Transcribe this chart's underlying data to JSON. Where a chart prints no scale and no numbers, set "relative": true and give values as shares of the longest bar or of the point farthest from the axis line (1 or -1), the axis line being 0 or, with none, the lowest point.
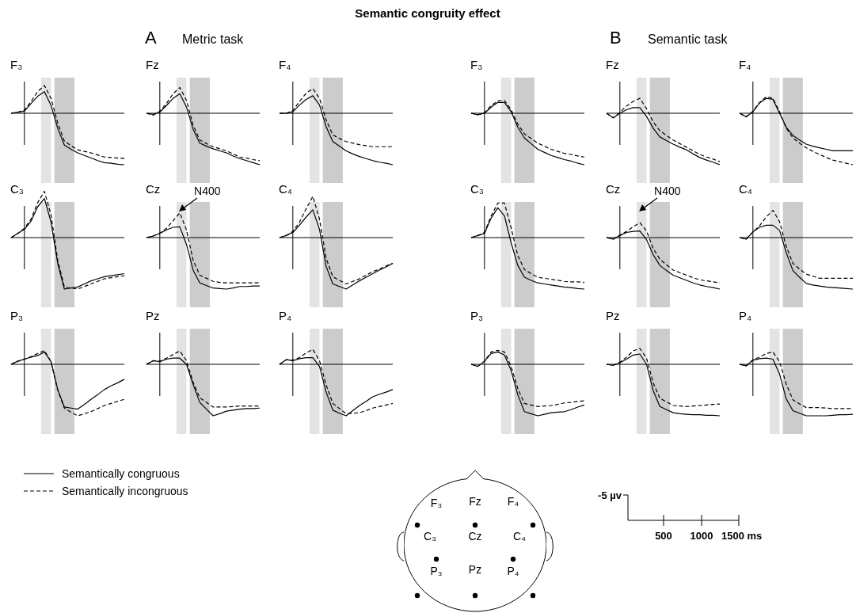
{
  "chart_data": [
    {
      "type": "line",
      "title": "F₃",
      "relative": true,
      "categories": [
        null,
        null,
        null,
        null,
        null,
        null,
        null,
        null,
        null,
        null,
        null,
        null,
        null,
        null,
        null,
        null,
        null,
        null
      ],
      "legend": "bottom right",
      "series": [
        {
          "name": "Semantically congruous",
          "color": "#000000",
          "line_style": "solid",
          "values": [
            0,
            0.02,
            0.04,
            0.19,
            0.33,
            0.42,
            0.15,
            -0.29,
            -0.62,
            -0.7,
            -0.77,
            -0.82,
            -0.87,
            -0.92,
            -0.96,
            -0.97,
            -0.99,
            -1
          ]
        },
        {
          "name": "Semantically incongruous",
          "color": "#000000",
          "line_style": "dashed",
          "values": [
            0,
            0.02,
            0.06,
            0.23,
            0.42,
            0.54,
            0.29,
            -0.19,
            -0.54,
            -0.63,
            -0.71,
            -0.74,
            -0.77,
            -0.81,
            -0.85,
            -0.86,
            -0.87,
            -0.88
          ]
        }
      ]
    },
    {
      "type": "line",
      "title": "Fz",
      "relative": true,
      "categories": [
        null,
        null,
        null,
        null,
        null,
        null,
        null,
        null,
        null,
        null,
        null,
        null,
        null,
        null,
        null,
        null,
        null,
        null
      ],
      "series": [
        {
          "color": "#000000",
          "line_style": "solid",
          "values": [
            0,
            -0.02,
            0.02,
            0.15,
            0.29,
            0.38,
            0.12,
            -0.31,
            -0.58,
            -0.64,
            -0.69,
            -0.73,
            -0.77,
            -0.83,
            -0.88,
            -0.92,
            -0.96,
            -1
          ]
        },
        {
          "color": "#000000",
          "line_style": "dashed",
          "values": [
            0,
            -0.04,
            0.04,
            0.19,
            0.38,
            0.5,
            0.25,
            -0.23,
            -0.52,
            -0.59,
            -0.65,
            -0.69,
            -0.73,
            -0.79,
            -0.85,
            -0.87,
            -0.9,
            -0.92
          ]
        }
      ]
    },
    {
      "type": "line",
      "title": "F₄",
      "relative": true,
      "categories": [
        null,
        null,
        null,
        null,
        null,
        null,
        null,
        null,
        null,
        null,
        null,
        null,
        null,
        null,
        null,
        null,
        null,
        null
      ],
      "series": [
        {
          "color": "#000000",
          "line_style": "solid",
          "values": [
            0,
            0,
            0.03,
            0.16,
            0.27,
            0.34,
            0.16,
            -0.26,
            -0.55,
            -0.64,
            -0.73,
            -0.79,
            -0.84,
            -0.88,
            -0.92,
            -0.95,
            -0.97,
            -1
          ]
        },
        {
          "color": "#000000",
          "line_style": "dashed",
          "values": [
            0,
            0,
            0.05,
            0.23,
            0.39,
            0.48,
            0.29,
            -0.13,
            -0.42,
            -0.49,
            -0.55,
            -0.58,
            -0.61,
            -0.63,
            -0.65,
            -0.65,
            -0.65,
            -0.65
          ]
        }
      ]
    },
    {
      "type": "line",
      "title": "C₃",
      "relative": true,
      "categories": [
        null,
        null,
        null,
        null,
        null,
        null,
        null,
        null,
        null,
        null,
        null,
        null,
        null,
        null,
        null,
        null,
        null,
        null
      ],
      "series": [
        {
          "color": "#000000",
          "line_style": "solid",
          "values": [
            0,
            0.08,
            0.16,
            0.32,
            0.6,
            0.76,
            0.3,
            -0.5,
            -1,
            -0.98,
            -0.96,
            -0.9,
            -0.84,
            -0.8,
            -0.76,
            -0.74,
            -0.72,
            -0.7
          ]
        },
        {
          "color": "#000000",
          "line_style": "dashed",
          "values": [
            0,
            0.08,
            0.18,
            0.36,
            0.68,
            0.9,
            0.44,
            -0.44,
            -0.96,
            -0.98,
            -1,
            -0.95,
            -0.9,
            -0.85,
            -0.8,
            -0.78,
            -0.76,
            -0.74
          ]
        }
      ]
    },
    {
      "type": "line",
      "title": "Cz",
      "relative": true,
      "categories": [
        null,
        null,
        null,
        null,
        null,
        null,
        null,
        null,
        null,
        null,
        null,
        null,
        null,
        null,
        null,
        null,
        null,
        null
      ],
      "annotations": [
        "N400"
      ],
      "series": [
        {
          "color": "#000000",
          "line_style": "solid",
          "values": [
            0,
            0.03,
            0.08,
            0.15,
            0.2,
            0.21,
            -0.13,
            -0.63,
            -0.88,
            -0.93,
            -0.98,
            -0.99,
            -1,
            -0.98,
            -0.95,
            -0.95,
            -0.94,
            -0.94
          ]
        },
        {
          "color": "#000000",
          "line_style": "dashed",
          "values": [
            0,
            0.03,
            0.09,
            0.18,
            0.33,
            0.48,
            0.15,
            -0.44,
            -0.73,
            -0.79,
            -0.85,
            -0.87,
            -0.88,
            -0.88,
            -0.88,
            -0.88,
            -0.88,
            -0.88
          ]
        }
      ]
    },
    {
      "type": "line",
      "title": "C₄",
      "relative": true,
      "categories": [
        null,
        null,
        null,
        null,
        null,
        null,
        null,
        null,
        null,
        null,
        null,
        null,
        null,
        null,
        null,
        null,
        null,
        null
      ],
      "series": [
        {
          "color": "#000000",
          "line_style": "solid",
          "values": [
            0,
            0.04,
            0.1,
            0.24,
            0.4,
            0.54,
            0.16,
            -0.56,
            -0.9,
            -0.95,
            -1,
            -0.92,
            -0.84,
            -0.77,
            -0.7,
            -0.63,
            -0.57,
            -0.5
          ]
        },
        {
          "color": "#000000",
          "line_style": "dashed",
          "values": [
            0,
            0.04,
            0.12,
            0.3,
            0.56,
            0.8,
            0.36,
            -0.4,
            -0.76,
            -0.83,
            -0.9,
            -0.85,
            -0.8,
            -0.73,
            -0.66,
            -0.61,
            -0.55,
            -0.5
          ]
        }
      ]
    },
    {
      "type": "line",
      "title": "P₃",
      "relative": true,
      "categories": [
        null,
        null,
        null,
        null,
        null,
        null,
        null,
        null,
        null,
        null,
        null,
        null,
        null,
        null,
        null,
        null,
        null,
        null
      ],
      "series": [
        {
          "color": "#000000",
          "line_style": "solid",
          "values": [
            0,
            0.06,
            0.1,
            0.14,
            0.17,
            0.24,
            0.05,
            -0.49,
            -0.83,
            -0.85,
            -0.87,
            -0.78,
            -0.68,
            -0.59,
            -0.49,
            -0.42,
            -0.36,
            -0.29
          ]
        },
        {
          "color": "#000000",
          "line_style": "dashed",
          "values": [
            0,
            0.06,
            0.1,
            0.15,
            0.21,
            0.27,
            0.05,
            -0.5,
            -0.85,
            -0.93,
            -1,
            -0.96,
            -0.92,
            -0.86,
            -0.8,
            -0.76,
            -0.72,
            -0.68
          ]
        }
      ]
    },
    {
      "type": "line",
      "title": "Pz",
      "relative": true,
      "categories": [
        null,
        null,
        null,
        null,
        null,
        null,
        null,
        null,
        null,
        null,
        null,
        null,
        null,
        null,
        null,
        null,
        null,
        null
      ],
      "series": [
        {
          "color": "#000000",
          "line_style": "solid",
          "values": [
            0,
            0.07,
            0.05,
            0.1,
            0.12,
            0.12,
            0,
            -0.39,
            -0.74,
            -0.87,
            -1,
            -0.96,
            -0.91,
            -0.89,
            -0.87,
            -0.86,
            -0.86,
            -0.85
          ]
        },
        {
          "color": "#000000",
          "line_style": "dashed",
          "values": [
            0,
            0.07,
            0.06,
            0.12,
            0.19,
            0.26,
            0.07,
            -0.35,
            -0.65,
            -0.74,
            -0.83,
            -0.83,
            -0.83,
            -0.82,
            -0.81,
            -0.81,
            -0.81,
            -0.81
          ]
        }
      ]
    },
    {
      "type": "line",
      "title": "P₄",
      "relative": true,
      "categories": [
        null,
        null,
        null,
        null,
        null,
        null,
        null,
        null,
        null,
        null,
        null,
        null,
        null,
        null,
        null,
        null,
        null,
        null
      ],
      "series": [
        {
          "color": "#000000",
          "line_style": "solid",
          "values": [
            0,
            0.09,
            0.07,
            0.11,
            0.13,
            0.13,
            -0.04,
            -0.54,
            -0.89,
            -0.95,
            -1,
            -0.9,
            -0.8,
            -0.72,
            -0.63,
            -0.58,
            -0.54,
            -0.49
          ]
        },
        {
          "color": "#000000",
          "line_style": "dashed",
          "values": [
            0,
            0.09,
            0.08,
            0.13,
            0.22,
            0.29,
            0.07,
            -0.4,
            -0.76,
            -0.86,
            -0.96,
            -0.95,
            -0.94,
            -0.9,
            -0.85,
            -0.82,
            -0.79,
            -0.76
          ]
        }
      ]
    },
    {
      "type": "line",
      "title": "F₃",
      "relative": true,
      "categories": [
        null,
        null,
        null,
        null,
        null,
        null,
        null,
        null,
        null,
        null,
        null,
        null,
        null,
        null,
        null,
        null,
        null,
        null
      ],
      "series": [
        {
          "color": "#000000",
          "line_style": "solid",
          "values": [
            0,
            -0.03,
            0,
            0.12,
            0.21,
            0.21,
            0.03,
            -0.27,
            -0.48,
            -0.59,
            -0.7,
            -0.76,
            -0.82,
            -0.86,
            -0.9,
            -0.93,
            -0.97,
            -1
          ]
        },
        {
          "color": "#000000",
          "line_style": "dashed",
          "values": [
            0,
            -0.03,
            0.01,
            0.15,
            0.24,
            0.25,
            0.07,
            -0.21,
            -0.4,
            -0.49,
            -0.58,
            -0.64,
            -0.7,
            -0.74,
            -0.78,
            -0.8,
            -0.83,
            -0.85
          ]
        }
      ]
    },
    {
      "type": "line",
      "title": "Fz",
      "relative": true,
      "categories": [
        null,
        null,
        null,
        null,
        null,
        null,
        null,
        null,
        null,
        null,
        null,
        null,
        null,
        null,
        null,
        null,
        null,
        null
      ],
      "series": [
        {
          "color": "#000000",
          "line_style": "solid",
          "values": [
            0,
            -0.09,
            0,
            0.07,
            0.11,
            0.11,
            -0.06,
            -0.29,
            -0.46,
            -0.53,
            -0.6,
            -0.66,
            -0.71,
            -0.79,
            -0.86,
            -0.91,
            -0.95,
            -1
          ]
        },
        {
          "color": "#000000",
          "line_style": "dashed",
          "values": [
            0,
            -0.09,
            0.02,
            0.14,
            0.23,
            0.29,
            0.09,
            -0.17,
            -0.34,
            -0.43,
            -0.52,
            -0.59,
            -0.66,
            -0.73,
            -0.8,
            -0.85,
            -0.89,
            -0.94
          ]
        }
      ]
    },
    {
      "type": "line",
      "title": "F₄",
      "relative": true,
      "categories": [
        null,
        null,
        null,
        null,
        null,
        null,
        null,
        null,
        null,
        null,
        null,
        null,
        null,
        null,
        null,
        null,
        null,
        null
      ],
      "series": [
        {
          "color": "#000000",
          "line_style": "solid",
          "values": [
            0,
            -0.07,
            0.03,
            0.2,
            0.29,
            0.27,
            0,
            -0.27,
            -0.43,
            -0.52,
            -0.6,
            -0.64,
            -0.67,
            -0.7,
            -0.73,
            -0.73,
            -0.73,
            -0.73
          ]
        },
        {
          "color": "#000000",
          "line_style": "dashed",
          "values": [
            0,
            -0.07,
            0.04,
            0.21,
            0.32,
            0.29,
            0.03,
            -0.29,
            -0.48,
            -0.58,
            -0.67,
            -0.74,
            -0.8,
            -0.86,
            -0.91,
            -0.94,
            -0.97,
            -1
          ]
        }
      ]
    },
    {
      "type": "line",
      "title": "C₃",
      "relative": true,
      "categories": [
        null,
        null,
        null,
        null,
        null,
        null,
        null,
        null,
        null,
        null,
        null,
        null,
        null,
        null,
        null,
        null,
        null,
        null
      ],
      "series": [
        {
          "color": "#000000",
          "line_style": "solid",
          "values": [
            0,
            0.04,
            0.08,
            0.38,
            0.58,
            0.42,
            -0.1,
            -0.54,
            -0.77,
            -0.83,
            -0.88,
            -0.9,
            -0.92,
            -0.94,
            -0.96,
            -0.97,
            -0.99,
            -1
          ]
        },
        {
          "color": "#000000",
          "line_style": "dashed",
          "values": [
            0,
            0.04,
            0.1,
            0.42,
            0.67,
            0.67,
            0.19,
            -0.35,
            -0.62,
            -0.7,
            -0.77,
            -0.79,
            -0.81,
            -0.83,
            -0.85,
            -0.86,
            -0.86,
            -0.87
          ]
        }
      ]
    },
    {
      "type": "line",
      "title": "Cz",
      "relative": true,
      "categories": [
        null,
        null,
        null,
        null,
        null,
        null,
        null,
        null,
        null,
        null,
        null,
        null,
        null,
        null,
        null,
        null,
        null,
        null
      ],
      "annotations": [
        "N400"
      ],
      "series": [
        {
          "color": "#000000",
          "line_style": "solid",
          "values": [
            0,
            -0.03,
            0.04,
            0.1,
            0.12,
            0.13,
            -0.04,
            -0.33,
            -0.54,
            -0.64,
            -0.73,
            -0.78,
            -0.83,
            -0.88,
            -0.92,
            -0.95,
            -0.97,
            -1
          ]
        },
        {
          "color": "#000000",
          "line_style": "dashed",
          "values": [
            0,
            -0.03,
            0.05,
            0.12,
            0.21,
            0.29,
            0.13,
            -0.21,
            -0.42,
            -0.53,
            -0.63,
            -0.68,
            -0.73,
            -0.78,
            -0.82,
            -0.84,
            -0.86,
            -0.88
          ]
        }
      ]
    },
    {
      "type": "line",
      "title": "C₄",
      "relative": true,
      "categories": [
        null,
        null,
        null,
        null,
        null,
        null,
        null,
        null,
        null,
        null,
        null,
        null,
        null,
        null,
        null,
        null,
        null,
        null
      ],
      "series": [
        {
          "color": "#000000",
          "line_style": "solid",
          "values": [
            0,
            -0.03,
            0.11,
            0.2,
            0.24,
            0.24,
            0.14,
            -0.29,
            -0.64,
            -0.77,
            -0.89,
            -0.92,
            -0.94,
            -0.96,
            -0.97,
            -0.98,
            -0.99,
            -1
          ]
        },
        {
          "color": "#000000",
          "line_style": "dashed",
          "values": [
            0,
            -0.03,
            0.11,
            0.23,
            0.4,
            0.53,
            0.31,
            -0.17,
            -0.5,
            -0.61,
            -0.71,
            -0.75,
            -0.79,
            -0.79,
            -0.79,
            -0.79,
            -0.79,
            -0.79
          ]
        }
      ]
    },
    {
      "type": "line",
      "title": "P₃",
      "relative": true,
      "categories": [
        null,
        null,
        null,
        null,
        null,
        null,
        null,
        null,
        null,
        null,
        null,
        null,
        null,
        null,
        null,
        null,
        null,
        null
      ],
      "series": [
        {
          "color": "#000000",
          "line_style": "solid",
          "values": [
            0,
            -0.04,
            0.06,
            0.21,
            0.24,
            0.18,
            -0.12,
            -0.59,
            -0.92,
            -0.96,
            -1,
            -0.97,
            -0.94,
            -0.93,
            -0.92,
            -0.88,
            -0.83,
            -0.79
          ]
        },
        {
          "color": "#000000",
          "line_style": "dashed",
          "values": [
            0,
            -0.04,
            0.06,
            0.24,
            0.27,
            0.24,
            -0.04,
            -0.47,
            -0.76,
            -0.79,
            -0.82,
            -0.81,
            -0.8,
            -0.78,
            -0.75,
            -0.74,
            -0.72,
            -0.71
          ]
        }
      ]
    },
    {
      "type": "line",
      "title": "Pz",
      "relative": true,
      "categories": [
        null,
        null,
        null,
        null,
        null,
        null,
        null,
        null,
        null,
        null,
        null,
        null,
        null,
        null,
        null,
        null,
        null,
        null
      ],
      "series": [
        {
          "color": "#000000",
          "line_style": "solid",
          "values": [
            0,
            -0.02,
            0.03,
            0.1,
            0.18,
            0.2,
            0,
            -0.51,
            -0.82,
            -0.88,
            -0.94,
            -0.96,
            -0.97,
            -0.98,
            -0.98,
            -0.99,
            -0.99,
            -1
          ]
        },
        {
          "color": "#000000",
          "line_style": "dashed",
          "values": [
            0,
            -0.02,
            0.04,
            0.14,
            0.26,
            0.31,
            0.12,
            -0.36,
            -0.66,
            -0.73,
            -0.8,
            -0.81,
            -0.82,
            -0.81,
            -0.8,
            -0.79,
            -0.78,
            -0.77
          ]
        }
      ]
    },
    {
      "type": "line",
      "title": "P₄",
      "relative": true,
      "categories": [
        null,
        null,
        null,
        null,
        null,
        null,
        null,
        null,
        null,
        null,
        null,
        null,
        null,
        null,
        null,
        null,
        null,
        null
      ],
      "series": [
        {
          "color": "#000000",
          "line_style": "solid",
          "values": [
            0,
            -0.03,
            0.08,
            0.11,
            0.12,
            0.1,
            -0.19,
            -0.67,
            -0.9,
            -0.95,
            -1,
            -1,
            -1,
            -1,
            -0.99,
            -0.98,
            -0.98,
            -0.97
          ]
        },
        {
          "color": "#000000",
          "line_style": "dashed",
          "values": [
            0,
            -0.03,
            0.09,
            0.14,
            0.21,
            0.24,
            0.05,
            -0.38,
            -0.69,
            -0.77,
            -0.84,
            -0.84,
            -0.84,
            -0.85,
            -0.86,
            -0.86,
            -0.86,
            -0.86
          ]
        }
      ]
    },
    {
      "type": "other",
      "annotations": [
        "-5 µv",
        "500",
        "1000",
        "1500 ms"
      ]
    },
    {
      "type": "other",
      "title": "Semantic congruity effect",
      "annotations": [
        "A",
        "Metric task",
        "B",
        "Semantic task",
        "F₃",
        "Fz",
        "F₄",
        "C₃",
        "Cz",
        "C₄",
        "P₃",
        "Pz",
        "P₄"
      ]
    }
  ]
}
